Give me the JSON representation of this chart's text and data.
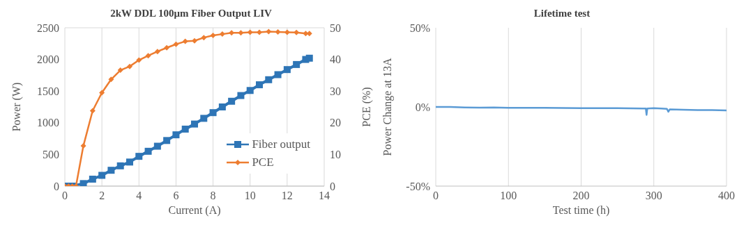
{
  "chart_data": [
    {
      "type": "line",
      "title": "2kW DDL 100μm Fiber Output LIV",
      "xlabel": "Current (A)",
      "ylabel": "Power (W)",
      "y2label": "PCE (%)",
      "x": [
        0,
        0.2,
        0.4,
        0.6,
        1,
        1.5,
        2,
        2.5,
        3,
        3.5,
        4,
        4.5,
        5,
        5.5,
        6,
        6.5,
        7,
        7.5,
        8,
        8.5,
        9,
        9.5,
        10,
        10.5,
        11,
        11.5,
        12,
        12.5,
        13,
        13.2
      ],
      "xlim": [
        0,
        14
      ],
      "xticks": [
        0,
        2,
        4,
        6,
        8,
        10,
        12,
        14
      ],
      "ylim": [
        0,
        2500
      ],
      "yticks": [
        0,
        500,
        1000,
        1500,
        2000,
        2500
      ],
      "y2lim": [
        0,
        50
      ],
      "y2ticks": [
        0,
        10,
        20,
        30,
        40,
        50
      ],
      "grid": true,
      "legend": "bottom right",
      "series": [
        {
          "name": "Fiber output",
          "color": "#2e75b6",
          "marker": "square",
          "values": [
            0,
            0,
            0,
            null,
            40,
            110,
            170,
            250,
            320,
            380,
            470,
            550,
            630,
            720,
            810,
            900,
            980,
            1070,
            1160,
            1250,
            1340,
            1430,
            1510,
            1600,
            1680,
            1760,
            1840,
            1920,
            2000,
            2020
          ]
        },
        {
          "name": "PCE",
          "color": "#ed7d31",
          "marker": "diamond",
          "axis": "y2",
          "values": [
            0,
            0,
            0,
            0,
            12.7,
            23.8,
            29.5,
            33.7,
            36.6,
            37.8,
            39.8,
            41.2,
            42.5,
            43.7,
            44.8,
            45.7,
            45.9,
            46.9,
            47.6,
            48.0,
            48.4,
            48.4,
            48.6,
            48.6,
            48.8,
            48.7,
            48.6,
            48.5,
            48.2,
            48.2
          ]
        }
      ]
    },
    {
      "type": "line",
      "title": "Lifetime test",
      "xlabel": "Test time (h)",
      "ylabel": "Power Change at 13A",
      "xlim": [
        0,
        400
      ],
      "xticks": [
        0,
        100,
        200,
        300,
        400
      ],
      "ylim": [
        -50,
        50
      ],
      "yticks": [
        {
          "value": -50,
          "label": "-50%"
        },
        {
          "value": 0,
          "label": "0%"
        },
        {
          "value": 50,
          "label": "50%"
        }
      ],
      "grid": "x",
      "legend": false,
      "marker": "none",
      "series": [
        {
          "color": "#5b9bd5",
          "x": [
            0,
            20,
            40,
            60,
            80,
            100,
            150,
            200,
            250,
            285,
            289,
            290,
            291,
            300,
            310,
            318,
            320,
            322,
            340,
            360,
            380,
            400
          ],
          "values": [
            0,
            0,
            -0.3,
            -0.4,
            -0.3,
            -0.5,
            -0.6,
            -0.8,
            -0.8,
            -1,
            -1,
            -5,
            -1,
            -0.8,
            -1,
            -1.2,
            -3,
            -1.5,
            -1.8,
            -2,
            -2,
            -2.2
          ]
        }
      ]
    }
  ]
}
